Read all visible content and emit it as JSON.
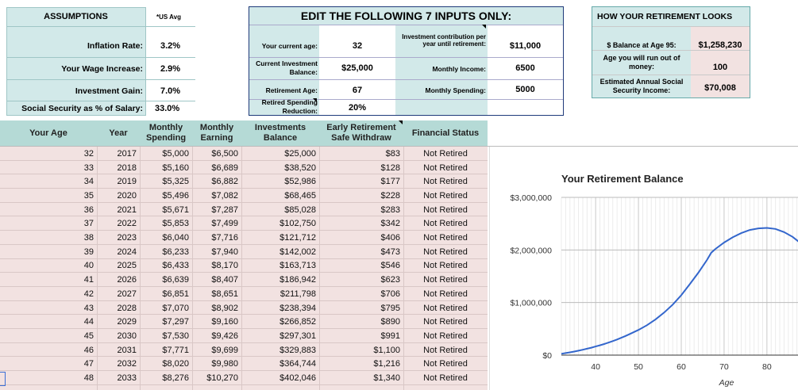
{
  "assumptions": {
    "title": "ASSUMPTIONS",
    "badge": "*US Avg",
    "rows": [
      {
        "label": "Inflation Rate:",
        "value": "3.2%"
      },
      {
        "label": "Your Wage Increase:",
        "value": "2.9%"
      },
      {
        "label": "Investment Gain:",
        "value": "7.0%"
      },
      {
        "label": "Social Security as % of Salary:",
        "value": "33.0%"
      }
    ]
  },
  "inputs": {
    "title": "EDIT THE FOLLOWING 7 INPUTS ONLY:",
    "left": [
      {
        "label": "Your current age:",
        "value": "32"
      },
      {
        "label": "Current Investment Balance:",
        "value": "$25,000"
      },
      {
        "label": "Retirement Age:",
        "value": "67"
      },
      {
        "label": "Retired Spending Reduction:",
        "value": "20%"
      }
    ],
    "right": [
      {
        "label": "Investment contribution per year until retirement:",
        "value": "$11,000"
      },
      {
        "label": "Monthly Income:",
        "value": "6500"
      },
      {
        "label": "Monthly Spending:",
        "value": "5000"
      }
    ]
  },
  "retirement": {
    "title": "HOW YOUR RETIREMENT LOOKS",
    "rows": [
      {
        "label": "$ Balance at Age 95:",
        "value": "$1,258,230"
      },
      {
        "label": "Age you will run out of money:",
        "value": "100"
      },
      {
        "label": "Estimated Annual Social Security Income:",
        "value": "$70,008"
      }
    ]
  },
  "table": {
    "headers": [
      "Your Age",
      "Year",
      "Monthly Spending",
      "Monthly Earning",
      "Investments Balance",
      "Early Retirement Safe Withdraw",
      "Financial Status"
    ],
    "rows": [
      [
        "32",
        "2017",
        "$5,000",
        "$6,500",
        "$25,000",
        "$83",
        "Not Retired"
      ],
      [
        "33",
        "2018",
        "$5,160",
        "$6,689",
        "$38,520",
        "$128",
        "Not Retired"
      ],
      [
        "34",
        "2019",
        "$5,325",
        "$6,882",
        "$52,986",
        "$177",
        "Not Retired"
      ],
      [
        "35",
        "2020",
        "$5,496",
        "$7,082",
        "$68,465",
        "$228",
        "Not Retired"
      ],
      [
        "36",
        "2021",
        "$5,671",
        "$7,287",
        "$85,028",
        "$283",
        "Not Retired"
      ],
      [
        "37",
        "2022",
        "$5,853",
        "$7,499",
        "$102,750",
        "$342",
        "Not Retired"
      ],
      [
        "38",
        "2023",
        "$6,040",
        "$7,716",
        "$121,712",
        "$406",
        "Not Retired"
      ],
      [
        "39",
        "2024",
        "$6,233",
        "$7,940",
        "$142,002",
        "$473",
        "Not Retired"
      ],
      [
        "40",
        "2025",
        "$6,433",
        "$8,170",
        "$163,713",
        "$546",
        "Not Retired"
      ],
      [
        "41",
        "2026",
        "$6,639",
        "$8,407",
        "$186,942",
        "$623",
        "Not Retired"
      ],
      [
        "42",
        "2027",
        "$6,851",
        "$8,651",
        "$211,798",
        "$706",
        "Not Retired"
      ],
      [
        "43",
        "2028",
        "$7,070",
        "$8,902",
        "$238,394",
        "$795",
        "Not Retired"
      ],
      [
        "44",
        "2029",
        "$7,297",
        "$9,160",
        "$266,852",
        "$890",
        "Not Retired"
      ],
      [
        "45",
        "2030",
        "$7,530",
        "$9,426",
        "$297,301",
        "$991",
        "Not Retired"
      ],
      [
        "46",
        "2031",
        "$7,771",
        "$9,699",
        "$329,883",
        "$1,100",
        "Not Retired"
      ],
      [
        "47",
        "2032",
        "$8,020",
        "$9,980",
        "$364,744",
        "$1,216",
        "Not Retired"
      ],
      [
        "48",
        "2033",
        "$8,276",
        "$10,270",
        "$402,046",
        "$1,340",
        "Not Retired"
      ]
    ]
  },
  "chart_data": {
    "type": "line",
    "title": "Your Retirement Balance",
    "xlabel": "Age",
    "ylabel": "",
    "xticks": [
      40,
      50,
      60,
      70,
      80
    ],
    "yticks": [
      "$0",
      "$1,000,000",
      "$2,000,000",
      "$3,000,000"
    ],
    "ytick_values": [
      0,
      1000000,
      2000000,
      3000000
    ],
    "xlim": [
      32,
      88
    ],
    "ylim": [
      0,
      3000000
    ],
    "grid": true,
    "color": "#3366cc",
    "series": [
      {
        "x": [
          32,
          33,
          34,
          35,
          36,
          37,
          38,
          39,
          40,
          41,
          42,
          43,
          44,
          45,
          46,
          47,
          48,
          50,
          52,
          54,
          56,
          58,
          60,
          62,
          64,
          66,
          67,
          68,
          70,
          72,
          74,
          76,
          78,
          80,
          82,
          84,
          86,
          88
        ],
        "values": [
          25000,
          38520,
          52986,
          68465,
          85028,
          102750,
          121712,
          142002,
          163713,
          186942,
          211798,
          238394,
          266852,
          297301,
          329883,
          364744,
          402046,
          480000,
          570000,
          680000,
          810000,
          960000,
          1140000,
          1350000,
          1570000,
          1810000,
          1950000,
          2020000,
          2140000,
          2240000,
          2320000,
          2380000,
          2410000,
          2420000,
          2400000,
          2340000,
          2250000,
          2120000
        ]
      }
    ]
  }
}
